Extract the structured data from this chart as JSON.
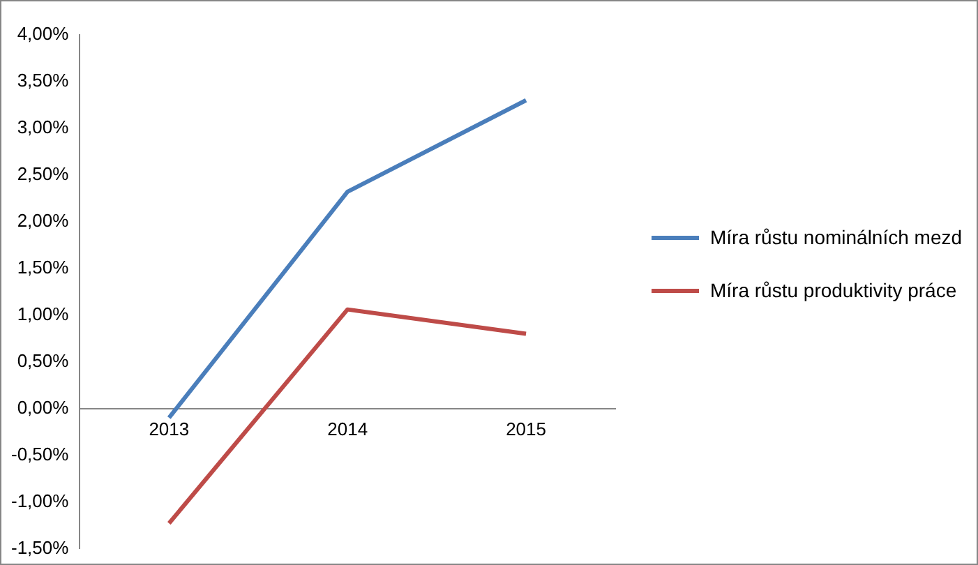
{
  "chart_data": {
    "type": "line",
    "categories": [
      "2013",
      "2014",
      "2015"
    ],
    "series": [
      {
        "name": "Míra růstu nominálních mezd",
        "color": "#4a7ebb",
        "values": [
          -0.1,
          2.32,
          3.3
        ]
      },
      {
        "name": "Míra růstu produktivity práce",
        "color": "#be4b48",
        "values": [
          -1.23,
          1.06,
          0.8
        ]
      }
    ],
    "ylim": [
      -1.5,
      4
    ],
    "yticks": [
      {
        "value": -1.5,
        "label": "-1,50%"
      },
      {
        "value": -1,
        "label": "-1,00%"
      },
      {
        "value": -0.5,
        "label": "-0,50%"
      },
      {
        "value": 0,
        "label": "0,00%"
      },
      {
        "value": 0.5,
        "label": "0,50%"
      },
      {
        "value": 1,
        "label": "1,00%"
      },
      {
        "value": 1.5,
        "label": "1,50%"
      },
      {
        "value": 2,
        "label": "2,00%"
      },
      {
        "value": 2.5,
        "label": "2,50%"
      },
      {
        "value": 3,
        "label": "3,00%"
      },
      {
        "value": 3.5,
        "label": "3,50%"
      },
      {
        "value": 4,
        "label": "4,00%"
      }
    ],
    "grid": false,
    "legend": "right",
    "marker": "none",
    "line_style": "solid"
  }
}
